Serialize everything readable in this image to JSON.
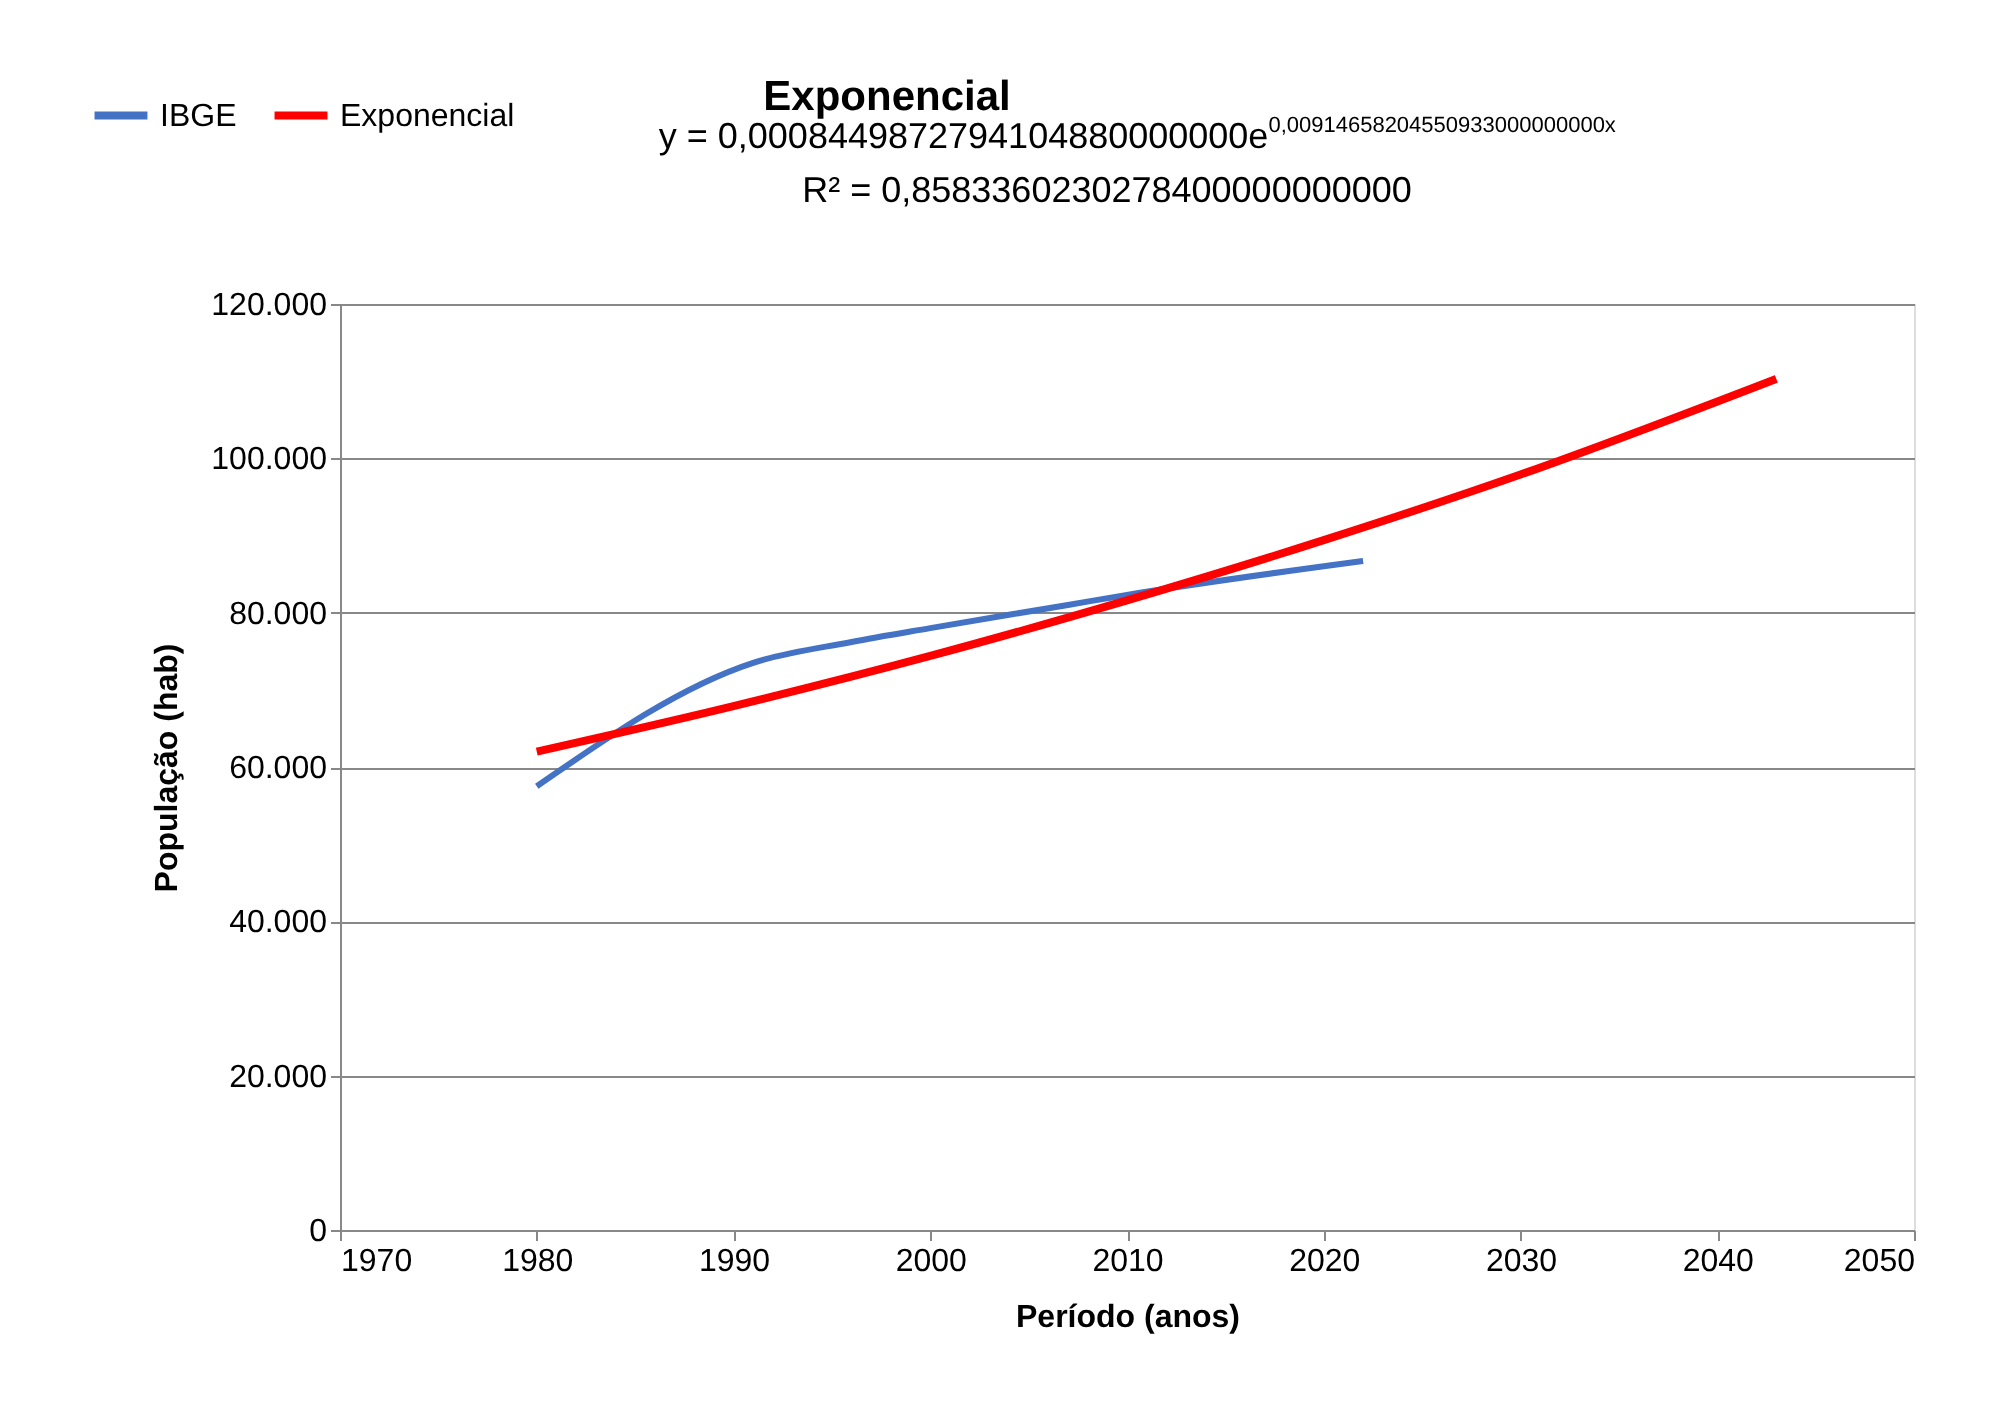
{
  "chart_data": {
    "type": "line",
    "title": "Exponencial",
    "xlabel": "Período (anos)",
    "ylabel": "População (hab)",
    "series": [
      {
        "name": "IBGE",
        "color": "#4472c4",
        "x": [
          1980,
          1991,
          1996,
          2000,
          2007,
          2010,
          2022
        ],
        "values": [
          57500,
          73500,
          76200,
          78000,
          81000,
          82300,
          86700
        ]
      },
      {
        "name": "Exponencial",
        "color": "#ff0000",
        "x": [
          1980,
          1990,
          2000,
          2010,
          2020,
          2030,
          2043
        ],
        "values": [
          62000,
          67900,
          74400,
          81600,
          89400,
          97900,
          110300
        ]
      }
    ],
    "xlim": [
      1970,
      2050
    ],
    "xticks": [
      1970,
      1980,
      1990,
      2000,
      2010,
      2020,
      2030,
      2040,
      2050
    ],
    "ylim": [
      0,
      120000
    ],
    "yticks": [
      0,
      {
        "value": 20000,
        "label": "20.000"
      },
      {
        "value": 40000,
        "label": "40.000"
      },
      {
        "value": 60000,
        "label": "60.000"
      },
      {
        "value": 80000,
        "label": "80.000"
      },
      {
        "value": 100000,
        "label": "100.000"
      },
      {
        "value": 120000,
        "label": "120.000"
      }
    ],
    "annotations": [
      "y = 0,0008449872794104880000000e$^{0,00914658204550933000000000x}$",
      "R² = 0,8583360230278400000000000"
    ],
    "grid": "y",
    "legend": "top left",
    "marker": "none",
    "line_style": "solid"
  }
}
